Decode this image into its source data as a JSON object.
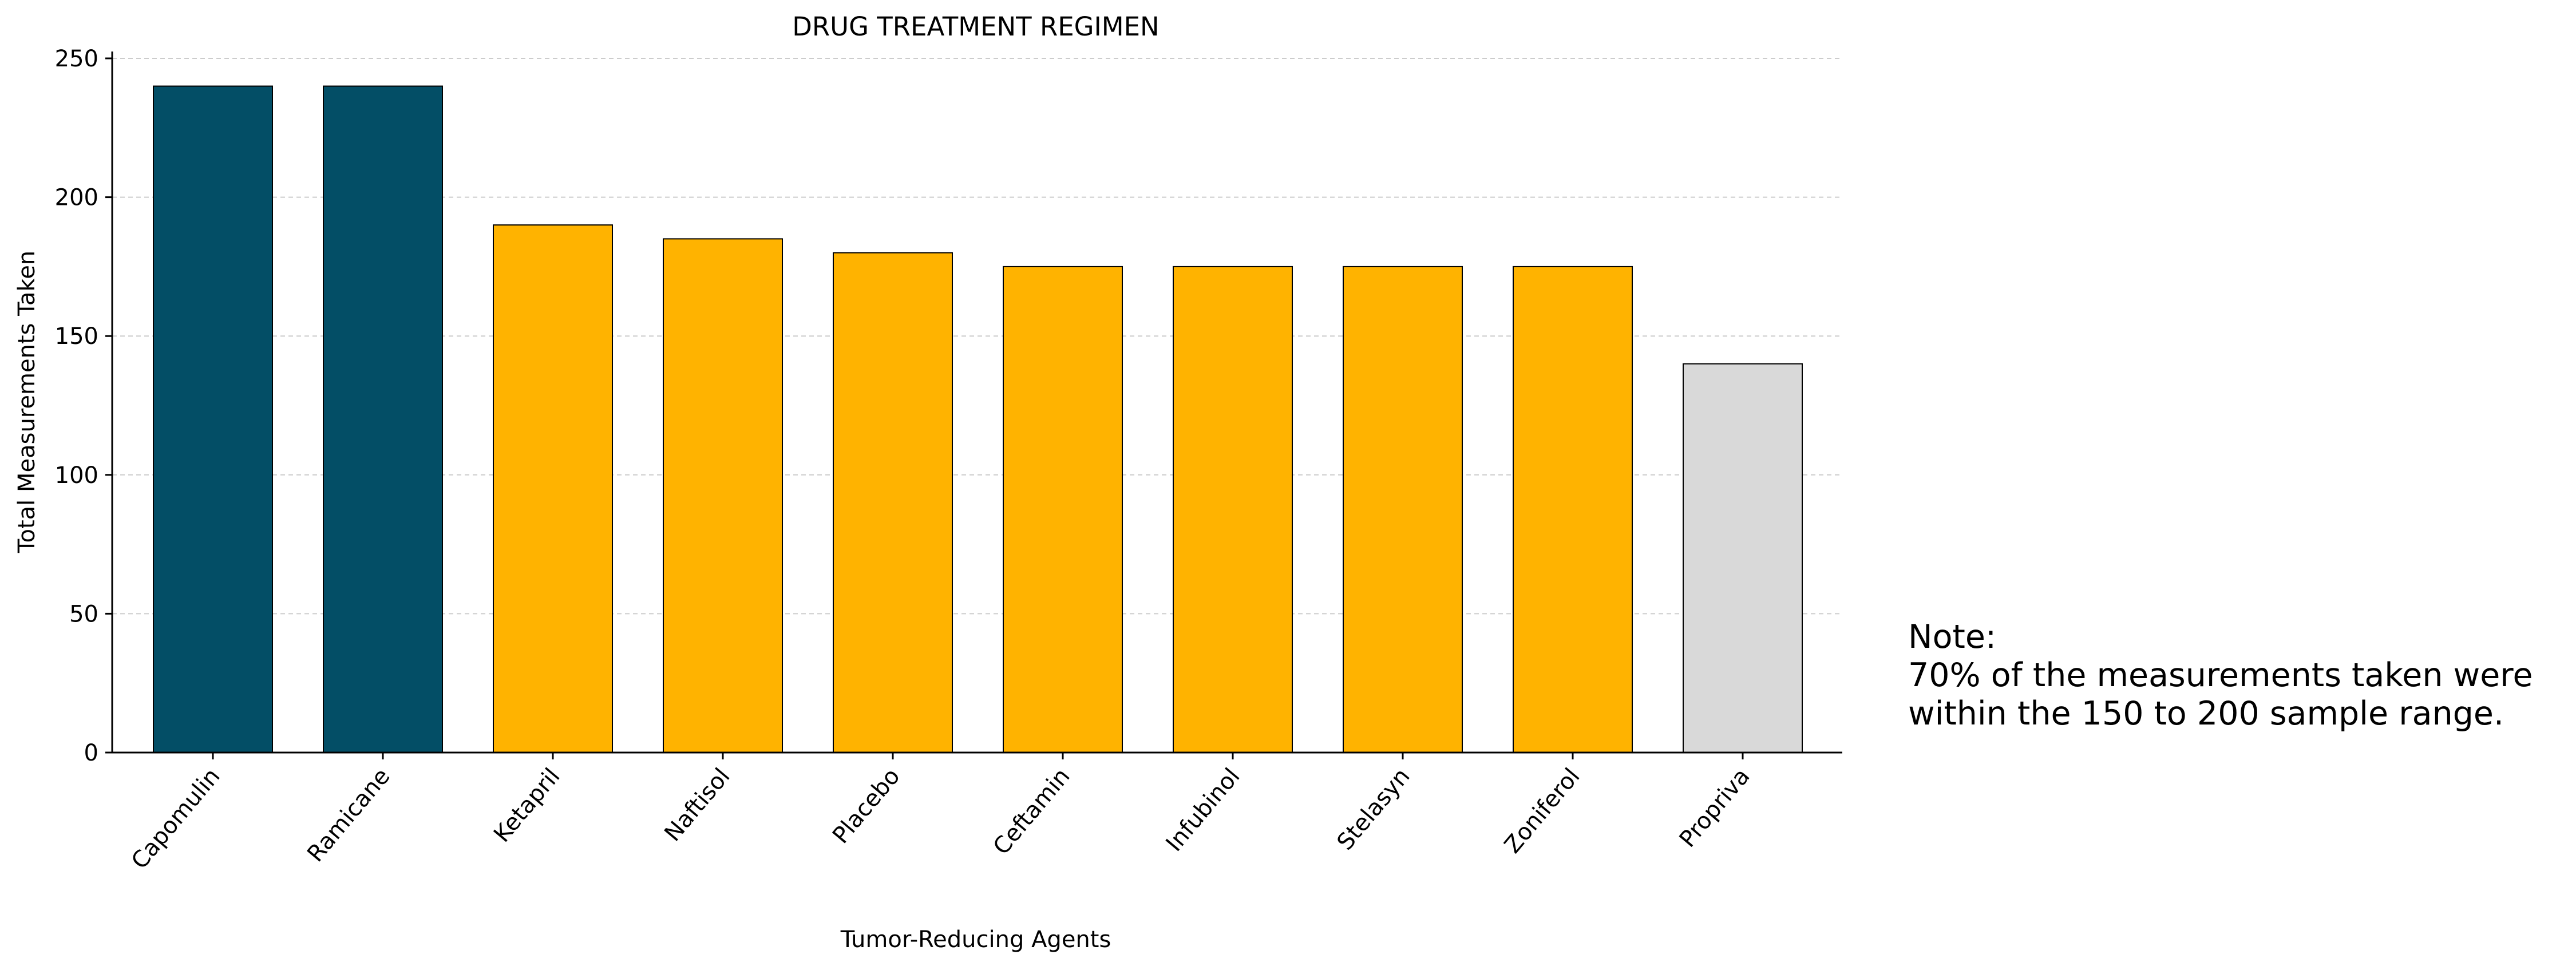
{
  "chart_data": {
    "type": "bar",
    "title": "DRUG TREATMENT REGIMEN",
    "xlabel": "Tumor-Reducing Agents",
    "ylabel": "Total Measurements Taken",
    "categories": [
      "Capomulin",
      "Ramicane",
      "Ketapril",
      "Naftisol",
      "Placebo",
      "Ceftamin",
      "Infubinol",
      "Stelasyn",
      "Zoniferol",
      "Propriva"
    ],
    "values": [
      240,
      240,
      190,
      185,
      180,
      175,
      175,
      175,
      175,
      140
    ],
    "bar_colors": [
      "#034e66",
      "#034e66",
      "#ffb300",
      "#ffb300",
      "#ffb300",
      "#ffb300",
      "#ffb300",
      "#ffb300",
      "#ffb300",
      "#d9d9d9"
    ],
    "yticks": [
      0,
      50,
      100,
      150,
      200,
      250
    ],
    "ylim": [
      0,
      250
    ],
    "grid": "y-dashed",
    "legend": "none"
  },
  "note": {
    "heading": "Note:",
    "line1": "70% of the measurements taken were",
    "line2": "within the 150 to 200 sample range."
  }
}
